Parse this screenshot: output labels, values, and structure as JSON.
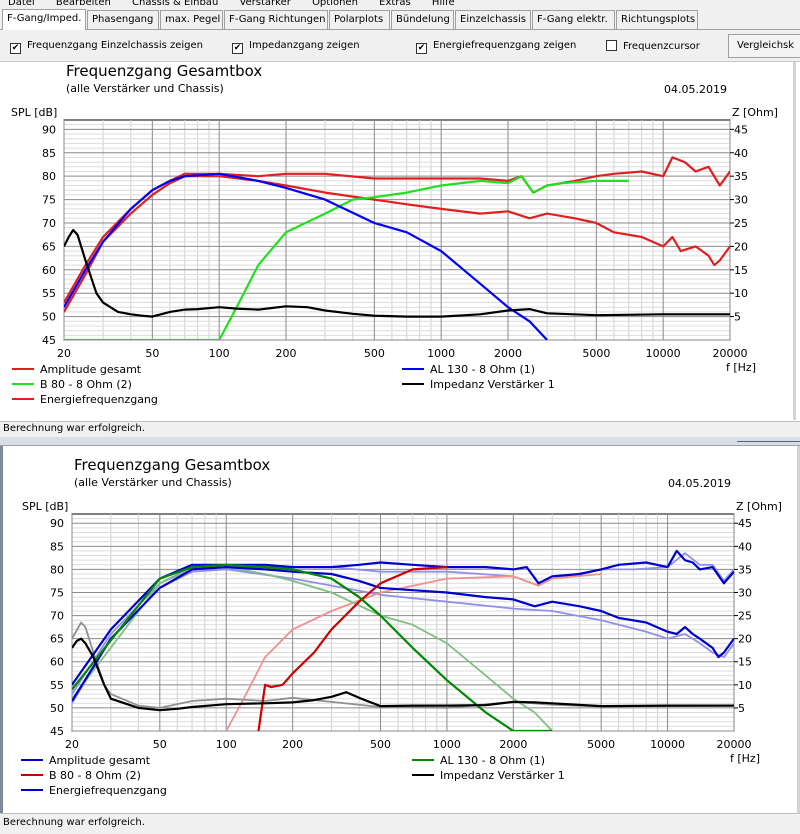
{
  "menu": [
    "Datei",
    "Bearbeiten",
    "Chassis & Einbau",
    "Verstärker",
    "Optionen",
    "Extras",
    "Hilfe"
  ],
  "tabs": [
    "F-Gang/Imped.",
    "Phasengang",
    "max. Pegel",
    "F-Gang Richtungen",
    "Polarplots",
    "Bündelung",
    "Einzelchassis",
    "F-Gang elektr.",
    "Richtungsplots"
  ],
  "options": [
    {
      "label": "Frequenzgang Einzelchassis zeigen",
      "checked": true
    },
    {
      "label": "Impedanzgang zeigen",
      "checked": true
    },
    {
      "label": "Energiefrequenzgang zeigen",
      "checked": true
    },
    {
      "label": "Frequenzcursor",
      "checked": false
    }
  ],
  "compare_button": "Vergleichsk",
  "status": "Berechnung war erfolgreich.",
  "chart_data": [
    {
      "type": "line",
      "title": "Frequenzgang Gesamtbox",
      "subtitle": "(alle Verstärker und Chassis)",
      "date": "04.05.2019",
      "xlabel": "f [Hz]",
      "ylabel": "SPL [dB]",
      "y2label": "Z [Ohm]",
      "xscale": "log",
      "xlim": [
        20,
        20000
      ],
      "ylim": [
        45,
        92
      ],
      "y2lim": [
        0,
        47
      ],
      "xticks": [
        20,
        50,
        100,
        200,
        500,
        1000,
        2000,
        5000,
        10000,
        20000
      ],
      "xtick_labels": [
        "20",
        "50",
        "100",
        "200",
        "500",
        "1000",
        "2000",
        "5000",
        "10000",
        "20000"
      ],
      "yticks": [
        45,
        50,
        55,
        60,
        65,
        70,
        75,
        80,
        85,
        90
      ],
      "y2ticks": [
        5,
        10,
        15,
        20,
        25,
        30,
        35,
        40,
        45
      ],
      "grid": true,
      "legend": [
        {
          "label": "Amplitude gesamt",
          "color": "#e02020"
        },
        {
          "label": "B 80 - 8 Ohm (2)",
          "color": "#20e020"
        },
        {
          "label": "Energiefrequenzgang",
          "color": "#e02020"
        },
        {
          "label": "AL 130 - 8 Ohm (1)",
          "color": "#0000ff"
        },
        {
          "label": "Impedanz Verstärker 1",
          "color": "#000000"
        }
      ],
      "series": [
        {
          "name": "Amplitude gesamt",
          "color": "#e02020",
          "x": [
            20,
            25,
            30,
            40,
            50,
            60,
            70,
            100,
            150,
            200,
            300,
            500,
            700,
            1000,
            1500,
            2000,
            2300,
            2600,
            3000,
            4000,
            5000,
            6000,
            8000,
            10000,
            11000,
            12500,
            14000,
            16000,
            18000,
            20000
          ],
          "y": [
            53,
            61,
            67,
            73,
            77,
            79,
            80.5,
            80.5,
            80,
            80.5,
            80.5,
            79.5,
            79.5,
            79.5,
            79.5,
            79,
            80,
            76.5,
            78,
            79,
            80,
            80.5,
            81,
            80,
            84,
            83,
            81,
            82,
            78,
            81
          ]
        },
        {
          "name": "Energiefrequenzgang",
          "color": "#e02020",
          "x": [
            20,
            25,
            30,
            40,
            50,
            60,
            70,
            100,
            150,
            200,
            300,
            500,
            700,
            1000,
            1500,
            2000,
            2500,
            3000,
            4000,
            5000,
            6000,
            8000,
            10000,
            11000,
            12000,
            14000,
            16000,
            17000,
            18000,
            20000
          ],
          "y": [
            51,
            59,
            66,
            72,
            76,
            78.5,
            80,
            80,
            79,
            78,
            76.5,
            75,
            74,
            73,
            72,
            72.5,
            71,
            72,
            71,
            70,
            68,
            67,
            65,
            67,
            64,
            65,
            63,
            61,
            62,
            65
          ]
        },
        {
          "name": "B 80 - 8 Ohm (2)",
          "color": "#20e020",
          "x": [
            20,
            50,
            90,
            100,
            120,
            150,
            200,
            300,
            400,
            500,
            700,
            1000,
            1500,
            2000,
            2300,
            2600,
            3000,
            3500,
            5000,
            7000
          ],
          "y": [
            45,
            45,
            45,
            45,
            52,
            61,
            68,
            72,
            75,
            75.5,
            76.5,
            78,
            79,
            78.5,
            80,
            76.5,
            78,
            78.5,
            79,
            79
          ]
        },
        {
          "name": "AL 130 - 8 Ohm (1)",
          "color": "#0000ff",
          "x": [
            20,
            25,
            30,
            40,
            50,
            60,
            70,
            100,
            150,
            200,
            300,
            500,
            700,
            1000,
            1500,
            2000,
            2500,
            3000
          ],
          "y": [
            52,
            60,
            66,
            73,
            77,
            79,
            80,
            80.5,
            79,
            77.5,
            75,
            70,
            68,
            64,
            57,
            52,
            49,
            45
          ]
        },
        {
          "name": "Impedanz Verstärker 1",
          "color": "#000000",
          "x": [
            20,
            21,
            22,
            23,
            25,
            28,
            30,
            35,
            40,
            45,
            50,
            60,
            70,
            80,
            100,
            120,
            150,
            200,
            250,
            300,
            400,
            500,
            700,
            1000,
            1500,
            2000,
            2500,
            3000,
            5000,
            10000,
            20000
          ],
          "y2": [
            20,
            22,
            23.5,
            22.5,
            17,
            10,
            8,
            6,
            5.5,
            5.2,
            5,
            6,
            6.5,
            6.6,
            7,
            6.7,
            6.5,
            7.2,
            7,
            6.3,
            5.6,
            5.2,
            5,
            5,
            5.5,
            6.3,
            6.6,
            5.7,
            5.3,
            5.5,
            5.5
          ]
        }
      ]
    },
    {
      "type": "line",
      "title": "Frequenzgang Gesamtbox",
      "subtitle": "(alle Verstärker und Chassis)",
      "date": "04.05.2019",
      "xlabel": "f [Hz]",
      "ylabel": "SPL [dB]",
      "y2label": "Z [Ohm]",
      "xscale": "log",
      "xlim": [
        20,
        20000
      ],
      "ylim": [
        45,
        92
      ],
      "y2lim": [
        0,
        47
      ],
      "xticks": [
        20,
        50,
        100,
        200,
        500,
        1000,
        2000,
        5000,
        10000,
        20000
      ],
      "xtick_labels": [
        "20",
        "50",
        "100",
        "200",
        "500",
        "1000",
        "2000",
        "5000",
        "10000",
        "20000"
      ],
      "yticks": [
        45,
        50,
        55,
        60,
        65,
        70,
        75,
        80,
        85,
        90
      ],
      "y2ticks": [
        5,
        10,
        15,
        20,
        25,
        30,
        35,
        40,
        45
      ],
      "grid": true,
      "legend": [
        {
          "label": "Amplitude gesamt",
          "color": "#0000cc"
        },
        {
          "label": "B 80 - 8 Ohm (2)",
          "color": "#cc0000"
        },
        {
          "label": "Energiefrequenzgang",
          "color": "#0000cc"
        },
        {
          "label": "AL 130 - 8 Ohm (1)",
          "color": "#008800"
        },
        {
          "label": "Impedanz Verstärker 1",
          "color": "#000000"
        }
      ],
      "series": [
        {
          "name": "Amplitude gesamt (Vergleich)",
          "color": "#9090e8",
          "x": [
            20,
            30,
            50,
            70,
            100,
            200,
            300,
            500,
            1000,
            2000,
            2600,
            3000,
            5000,
            7000,
            10000,
            12000,
            14000,
            16000,
            18000,
            20000
          ],
          "y": [
            53,
            66,
            77,
            80.5,
            80.5,
            80.5,
            80.5,
            79.5,
            79.5,
            78.5,
            76.5,
            78,
            80,
            80,
            80.5,
            83.5,
            81,
            81,
            77.5,
            80
          ]
        },
        {
          "name": "Energiefrequenzgang (Vergleich)",
          "color": "#9090e8",
          "x": [
            20,
            30,
            50,
            70,
            100,
            200,
            300,
            500,
            1000,
            2000,
            3000,
            5000,
            8000,
            10000,
            12000,
            14000,
            16000,
            18000,
            20000
          ],
          "y": [
            51,
            65,
            76,
            79.5,
            80,
            78,
            76.5,
            74.5,
            73,
            71.5,
            71,
            69,
            66.5,
            65,
            66,
            64,
            62,
            61,
            64
          ]
        },
        {
          "name": "B 80 - 8 Ohm (2) (Vergleich)",
          "color": "#f09090",
          "x": [
            100,
            120,
            150,
            200,
            300,
            500,
            1000,
            2000,
            2600,
            3000,
            5000
          ],
          "y": [
            45,
            52,
            61,
            67,
            71,
            75,
            78,
            78.5,
            76.5,
            78,
            79
          ]
        },
        {
          "name": "AL 130 - 8 Ohm (1) (Vergleich)",
          "color": "#80c080",
          "x": [
            20,
            50,
            70,
            100,
            150,
            200,
            300,
            500,
            700,
            1000,
            1500,
            2000,
            2500,
            3000
          ],
          "y": [
            52,
            77,
            80,
            80.5,
            79,
            77.5,
            75,
            70,
            68,
            64,
            57,
            52,
            49,
            45
          ]
        },
        {
          "name": "Impedanz Verstärker 1 (Vergleich)",
          "color": "#909090",
          "x": [
            20,
            22,
            23,
            25,
            28,
            30,
            40,
            50,
            70,
            100,
            150,
            200,
            300,
            500,
            1000,
            2000,
            3000,
            5000,
            20000
          ],
          "y2": [
            20,
            23.5,
            22.5,
            17,
            10,
            8,
            5.5,
            5,
            6.5,
            7,
            6.5,
            7.2,
            6.3,
            5.2,
            5,
            6.3,
            5.7,
            5.3,
            5.5
          ]
        },
        {
          "name": "Amplitude gesamt",
          "color": "#0000cc",
          "x": [
            20,
            30,
            50,
            70,
            100,
            150,
            200,
            300,
            400,
            500,
            700,
            1000,
            1500,
            2000,
            2300,
            2600,
            3000,
            4000,
            5000,
            6000,
            8000,
            10000,
            11000,
            12000,
            13000,
            14000,
            16000,
            18000,
            20000
          ],
          "y": [
            55,
            67,
            78,
            81,
            81,
            81,
            80.5,
            80.5,
            81,
            81.5,
            81,
            80.5,
            80.5,
            80,
            80.5,
            77,
            78.5,
            79,
            80,
            81,
            81.5,
            80.5,
            84,
            82,
            81.5,
            80,
            80.5,
            77,
            79.5
          ]
        },
        {
          "name": "Energiefrequenzgang",
          "color": "#0000cc",
          "x": [
            20,
            30,
            50,
            70,
            100,
            150,
            200,
            300,
            400,
            500,
            700,
            1000,
            1500,
            2000,
            2500,
            3000,
            4000,
            5000,
            6000,
            8000,
            10000,
            11000,
            12000,
            13000,
            14000,
            16000,
            17000,
            18000,
            20000
          ],
          "y": [
            51.5,
            65,
            76,
            80,
            80.5,
            80,
            79.5,
            79,
            77.5,
            76,
            75.5,
            75,
            74,
            73.5,
            72,
            73,
            72,
            71,
            69.5,
            68.5,
            66.5,
            66,
            67.5,
            66,
            65,
            63,
            61,
            62,
            65
          ]
        },
        {
          "name": "B 80 - 8 Ohm (2)",
          "color": "#cc0000",
          "x": [
            140,
            150,
            160,
            180,
            200,
            250,
            300,
            400,
            500,
            700,
            1000
          ],
          "y": [
            45,
            55,
            54.5,
            55,
            57.5,
            62,
            67,
            73,
            77,
            80,
            80.5
          ]
        },
        {
          "name": "AL 130 - 8 Ohm (1)",
          "color": "#008800",
          "x": [
            20,
            50,
            70,
            100,
            150,
            200,
            300,
            400,
            500,
            700,
            1000,
            1500,
            2000,
            2500,
            3000
          ],
          "y": [
            54,
            78,
            80.5,
            81,
            80.5,
            80,
            78,
            74,
            70,
            63,
            56,
            49,
            45,
            45,
            45
          ]
        },
        {
          "name": "Impedanz Verstärker 1",
          "color": "#000000",
          "x": [
            20,
            21,
            22,
            23,
            25,
            28,
            30,
            40,
            50,
            60,
            70,
            100,
            150,
            200,
            250,
            300,
            350,
            400,
            500,
            700,
            1000,
            1500,
            2000,
            2500,
            3000,
            5000,
            10000,
            20000
          ],
          "y2": [
            18,
            19.5,
            20,
            19,
            16,
            10,
            7,
            5,
            4.5,
            4.8,
            5.2,
            5.8,
            6,
            6.2,
            6.7,
            7.4,
            8.4,
            7.2,
            5.4,
            5.5,
            5.5,
            5.6,
            6.3,
            6.2,
            6,
            5.4,
            5.5,
            5.5
          ]
        }
      ]
    }
  ]
}
